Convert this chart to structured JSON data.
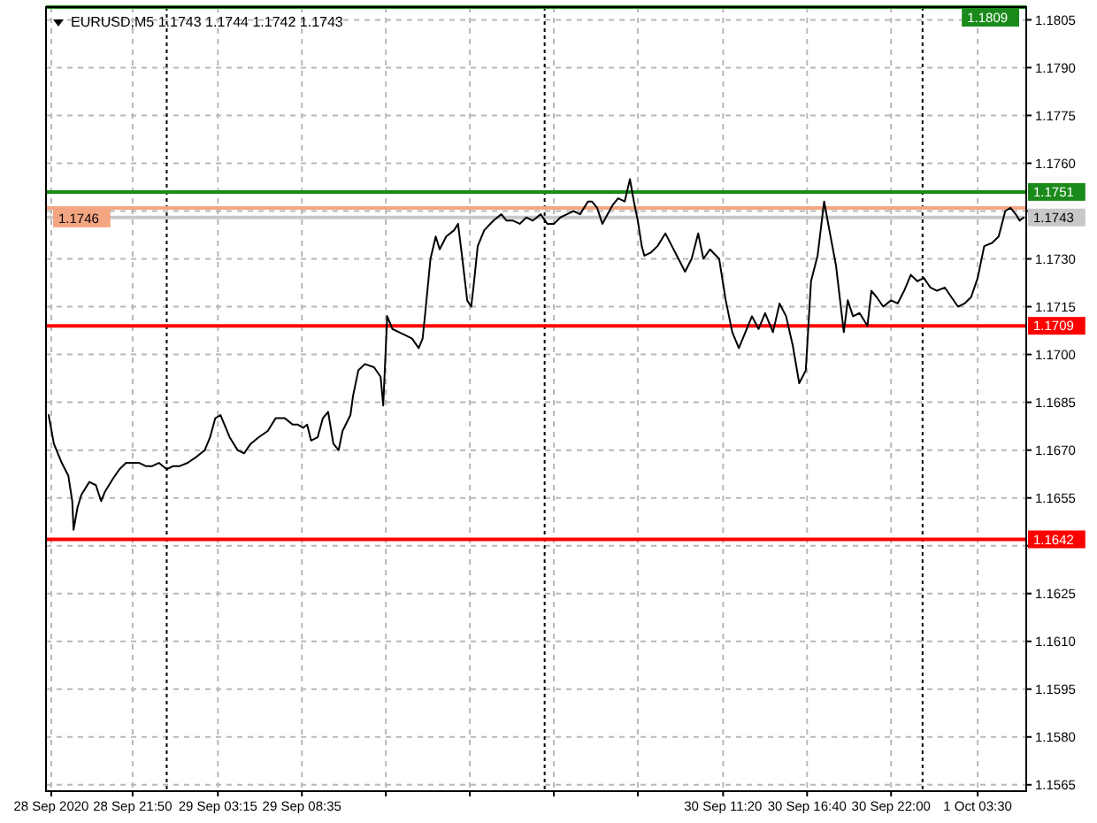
{
  "chart_data": {
    "type": "line",
    "title": "EURUSD,M5  1.1743 1.1744 1.1742 1.1743",
    "x": [
      "2020-09-28T16:30",
      "2020-09-28T16:50",
      "2020-09-28T17:20",
      "2020-09-28T17:45",
      "2020-09-28T18:00",
      "2020-09-28T18:05",
      "2020-09-28T18:20",
      "2020-09-28T18:35",
      "2020-09-28T19:05",
      "2020-09-28T19:30",
      "2020-09-28T19:50",
      "2020-09-28T20:05",
      "2020-09-28T20:35",
      "2020-09-28T21:00",
      "2020-09-28T21:25",
      "2020-09-28T21:50",
      "2020-09-28T22:15",
      "2020-09-28T22:40",
      "2020-09-28T23:05",
      "2020-09-28T23:30",
      "2020-09-29T00:00",
      "2020-09-29T00:25",
      "2020-09-29T00:50",
      "2020-09-29T01:20",
      "2020-09-29T01:55",
      "2020-09-29T02:25",
      "2020-09-29T02:45",
      "2020-09-29T03:05",
      "2020-09-29T03:25",
      "2020-09-29T03:45",
      "2020-09-29T04:00",
      "2020-09-29T04:30",
      "2020-09-29T04:55",
      "2020-09-29T05:20",
      "2020-09-29T05:50",
      "2020-09-29T06:25",
      "2020-09-29T06:55",
      "2020-09-29T07:30",
      "2020-09-29T08:00",
      "2020-09-29T08:20",
      "2020-09-29T08:40",
      "2020-09-29T08:55",
      "2020-09-29T09:10",
      "2020-09-29T09:35",
      "2020-09-29T09:55",
      "2020-09-29T10:15",
      "2020-09-29T10:35",
      "2020-09-29T10:55",
      "2020-09-29T11:10",
      "2020-09-29T11:40",
      "2020-09-29T11:50",
      "2020-09-29T12:10",
      "2020-09-29T12:35",
      "2020-09-29T13:10",
      "2020-09-29T13:35",
      "2020-09-29T13:45",
      "2020-09-29T14:00",
      "2020-09-29T14:20",
      "2020-09-29T14:45",
      "2020-09-29T15:10",
      "2020-09-29T15:35",
      "2020-09-29T16:00",
      "2020-09-29T16:15",
      "2020-09-29T16:25",
      "2020-09-29T16:45",
      "2020-09-29T17:05",
      "2020-09-29T17:20",
      "2020-09-29T17:45",
      "2020-09-29T18:15",
      "2020-09-29T18:30",
      "2020-09-29T18:45",
      "2020-09-29T19:05",
      "2020-09-29T19:20",
      "2020-09-29T19:30",
      "2020-09-29T19:45",
      "2020-09-29T20:10",
      "2020-09-29T20:45",
      "2020-09-29T21:15",
      "2020-09-29T21:35",
      "2020-09-29T22:00",
      "2020-09-29T22:25",
      "2020-09-29T22:50",
      "2020-09-29T23:15",
      "2020-09-29T23:45",
      "2020-09-30T00:10",
      "2020-09-30T00:35",
      "2020-09-30T01:00",
      "2020-09-30T01:25",
      "2020-09-30T01:50",
      "2020-09-30T02:15",
      "2020-09-30T02:45",
      "2020-09-30T03:00",
      "2020-09-30T03:20",
      "2020-09-30T03:40",
      "2020-09-30T04:00",
      "2020-09-30T04:20",
      "2020-09-30T04:40",
      "2020-09-30T05:05",
      "2020-09-30T05:25",
      "2020-09-30T05:40",
      "2020-09-30T05:55",
      "2020-09-30T06:10",
      "2020-09-30T06:20",
      "2020-09-30T06:45",
      "2020-09-30T07:10",
      "2020-09-30T07:40",
      "2020-09-30T08:05",
      "2020-09-30T08:30",
      "2020-09-30T08:55",
      "2020-09-30T09:20",
      "2020-09-30T09:45",
      "2020-09-30T10:05",
      "2020-09-30T10:30",
      "2020-09-30T11:05",
      "2020-09-30T11:30",
      "2020-09-30T11:55",
      "2020-09-30T12:20",
      "2020-09-30T12:45",
      "2020-09-30T13:10",
      "2020-09-30T13:35",
      "2020-09-30T14:00",
      "2020-09-30T14:30",
      "2020-09-30T14:55",
      "2020-09-30T15:20",
      "2020-09-30T15:45",
      "2020-09-30T16:10",
      "2020-09-30T16:35",
      "2020-09-30T16:55",
      "2020-09-30T17:20",
      "2020-09-30T17:45",
      "2020-09-30T18:05",
      "2020-09-30T18:30",
      "2020-09-30T19:00",
      "2020-09-30T19:15",
      "2020-09-30T19:35",
      "2020-09-30T20:00",
      "2020-09-30T20:30",
      "2020-09-30T20:45",
      "2020-09-30T21:05",
      "2020-09-30T21:30",
      "2020-09-30T22:00",
      "2020-09-30T22:25",
      "2020-09-30T22:50",
      "2020-09-30T23:15",
      "2020-09-30T23:40",
      "2020-10-01T00:05",
      "2020-10-01T00:30",
      "2020-10-01T00:55",
      "2020-10-01T01:25",
      "2020-10-01T01:50",
      "2020-10-01T02:15",
      "2020-10-01T02:40",
      "2020-10-01T03:05",
      "2020-10-01T03:30",
      "2020-10-01T03:55",
      "2020-10-01T04:25",
      "2020-10-01T04:50",
      "2020-10-01T05:15",
      "2020-10-01T05:35",
      "2020-10-01T05:55",
      "2020-10-01T06:10",
      "2020-10-01T06:25"
    ],
    "series": [
      {
        "color": "#000000",
        "values": [
          1.1681,
          1.1672,
          1.1666,
          1.1662,
          1.1654,
          1.1645,
          1.1652,
          1.1656,
          1.166,
          1.1659,
          1.1654,
          1.1657,
          1.1661,
          1.1664,
          1.1666,
          1.1666,
          1.1666,
          1.1665,
          1.1665,
          1.1666,
          1.1664,
          1.1665,
          1.1665,
          1.1666,
          1.1668,
          1.167,
          1.1674,
          1.168,
          1.1681,
          1.1677,
          1.1674,
          1.167,
          1.1669,
          1.1672,
          1.1674,
          1.1676,
          1.168,
          1.168,
          1.1678,
          1.1678,
          1.1677,
          1.1678,
          1.1673,
          1.1674,
          1.168,
          1.1682,
          1.1672,
          1.167,
          1.1676,
          1.1681,
          1.1687,
          1.1695,
          1.1697,
          1.1696,
          1.1693,
          1.1684,
          1.1712,
          1.1708,
          1.1707,
          1.1706,
          1.1705,
          1.1702,
          1.1705,
          1.1713,
          1.173,
          1.1737,
          1.1733,
          1.1737,
          1.1739,
          1.1741,
          1.1731,
          1.1717,
          1.1715,
          1.1722,
          1.1734,
          1.1739,
          1.1742,
          1.1744,
          1.1742,
          1.1742,
          1.1741,
          1.1743,
          1.1742,
          1.1744,
          1.1741,
          1.1741,
          1.1743,
          1.1744,
          1.1745,
          1.1744,
          1.1748,
          1.1748,
          1.1746,
          1.1741,
          1.1744,
          1.1747,
          1.1749,
          1.1748,
          1.1755,
          1.1748,
          1.1742,
          1.1734,
          1.1731,
          1.1732,
          1.1734,
          1.1738,
          1.1734,
          1.173,
          1.1726,
          1.173,
          1.1738,
          1.173,
          1.1733,
          1.173,
          1.1717,
          1.1707,
          1.1702,
          1.1707,
          1.1712,
          1.1708,
          1.1713,
          1.1707,
          1.1716,
          1.1712,
          1.1703,
          1.1691,
          1.1695,
          1.1723,
          1.1731,
          1.1748,
          1.1739,
          1.1728,
          1.1707,
          1.1717,
          1.1712,
          1.1713,
          1.1709,
          1.172,
          1.1718,
          1.1715,
          1.1717,
          1.1716,
          1.172,
          1.1725,
          1.1723,
          1.1724,
          1.1721,
          1.172,
          1.1721,
          1.1718,
          1.1715,
          1.1716,
          1.1718,
          1.1724,
          1.1734,
          1.1735,
          1.1737,
          1.1745,
          1.1746,
          1.1744,
          1.1742,
          1.1743
        ]
      }
    ],
    "xlim": [
      "2020-09-28T16:20",
      "2020-10-01T06:35"
    ],
    "xticks": [
      {
        "value": "2020-09-28T16:40",
        "label": "28 Sep 2020"
      },
      {
        "value": "2020-09-28T21:50",
        "label": "28 Sep 21:50"
      },
      {
        "value": "2020-09-29T03:15",
        "label": "29 Sep 03:15"
      },
      {
        "value": "2020-09-29T08:35",
        "label": "29 Sep 08:35"
      },
      {
        "value": "2020-09-29T13:55",
        "label": null
      },
      {
        "value": "2020-09-29T19:15",
        "label": null
      },
      {
        "value": "2020-09-30T00:35",
        "label": null
      },
      {
        "value": "2020-09-30T05:55",
        "label": null
      },
      {
        "value": "2020-09-30T11:20",
        "label": "30 Sep 11:20"
      },
      {
        "value": "2020-09-30T16:40",
        "label": "30 Sep 16:40"
      },
      {
        "value": "2020-09-30T22:00",
        "label": "30 Sep 22:00"
      },
      {
        "value": "2020-10-01T03:30",
        "label": "1 Oct 03:30"
      }
    ],
    "ylim": [
      1.1563,
      1.1809
    ],
    "yticks": [
      1.1565,
      {
        "value": 1.158,
        "label": "1.1580"
      },
      1.1595,
      {
        "value": 1.161,
        "label": "1.1610"
      },
      1.1625,
      {
        "value": 1.164,
        "label": null
      },
      1.1655,
      {
        "value": 1.167,
        "label": "1.1670"
      },
      1.1685,
      {
        "value": 1.17,
        "label": "1.1700"
      },
      1.1715,
      {
        "value": 1.173,
        "label": "1.1730"
      },
      {
        "value": 1.1745,
        "label": null
      },
      {
        "value": 1.176,
        "label": "1.1760"
      },
      1.1775,
      {
        "value": 1.179,
        "label": "1.1790"
      },
      1.1805
    ],
    "grid": true,
    "ref_lines": [
      {
        "axis": "y",
        "value": 1.1809,
        "label": "1.1809",
        "color": "#1a8a1a"
      },
      {
        "axis": "y",
        "value": 1.1751,
        "label": "1.1751",
        "color": "#1a8a1a"
      },
      {
        "axis": "y",
        "value": 1.1746,
        "label": "1.1746",
        "color": "#f4a582"
      },
      {
        "axis": "y",
        "value": 1.1743,
        "label": "1.1743",
        "color": "#c8c8c8"
      },
      {
        "axis": "y",
        "value": 1.1709,
        "label": "1.1709",
        "color": "#ff0000"
      },
      {
        "axis": "y",
        "value": 1.1642,
        "label": "1.1642",
        "color": "#ff0000"
      },
      {
        "axis": "x",
        "value": "2020-09-29T00:00",
        "color": "#000000",
        "line_style": "dotted"
      },
      {
        "axis": "x",
        "value": "2020-09-30T00:00",
        "color": "#000000",
        "line_style": "dotted"
      },
      {
        "axis": "x",
        "value": "2020-10-01T00:00",
        "color": "#000000",
        "line_style": "dotted"
      }
    ]
  }
}
